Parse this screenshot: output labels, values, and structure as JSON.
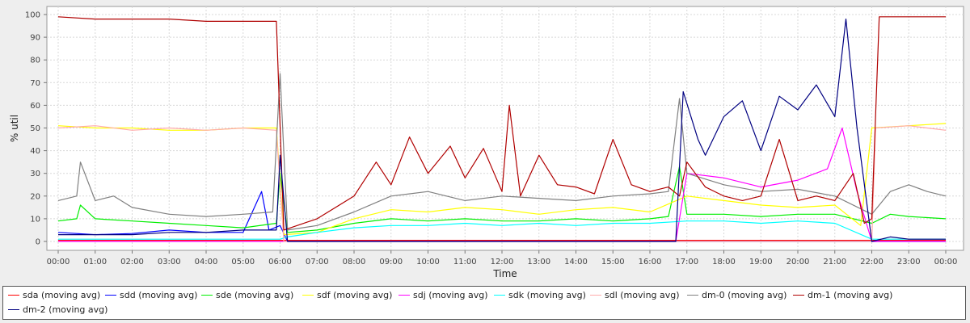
{
  "chart_data": {
    "type": "line",
    "xlabel": "Time",
    "ylabel": "% util",
    "x_ticks": [
      "00:00",
      "01:00",
      "02:00",
      "03:00",
      "04:00",
      "05:00",
      "06:00",
      "07:00",
      "08:00",
      "09:00",
      "10:00",
      "11:00",
      "12:00",
      "13:00",
      "14:00",
      "15:00",
      "16:00",
      "17:00",
      "18:00",
      "19:00",
      "20:00",
      "21:00",
      "22:00",
      "23:00",
      "00:00"
    ],
    "y_ticks": [
      "0",
      "10",
      "20",
      "30",
      "40",
      "50",
      "60",
      "70",
      "80",
      "90",
      "100"
    ],
    "xlim": [
      0,
      24
    ],
    "ylim": [
      0,
      100
    ],
    "grid": true,
    "legend_position": "bottom",
    "series": [
      {
        "name": "sda (moving avg)",
        "color": "#ff0000",
        "x": [
          0,
          6.1,
          24
        ],
        "y": [
          0.5,
          0.5,
          0.5
        ]
      },
      {
        "name": "sdd (moving avg)",
        "color": "#0000ff",
        "x": [
          0,
          1,
          2,
          3,
          4,
          5,
          5.5,
          5.7,
          6,
          6.2,
          6.5,
          16.7,
          17,
          24
        ],
        "y": [
          4,
          3,
          3.5,
          5,
          4,
          4,
          22,
          5,
          7,
          0,
          0,
          0,
          0,
          0
        ]
      },
      {
        "name": "sde (moving avg)",
        "color": "#00ee00",
        "x": [
          0,
          0.5,
          0.6,
          1,
          2,
          3,
          4,
          5,
          5.9,
          6,
          6.2,
          7,
          8,
          9,
          10,
          11,
          12,
          13,
          14,
          15,
          16,
          16.5,
          16.8,
          17,
          18,
          19,
          20,
          21,
          22,
          22.5,
          23,
          24
        ],
        "y": [
          9,
          10,
          16,
          10,
          9,
          8,
          7,
          6,
          8,
          30,
          4,
          5,
          8,
          10,
          9,
          10,
          9,
          9,
          10,
          9,
          10,
          11,
          33,
          12,
          12,
          11,
          12,
          12,
          8,
          12,
          11,
          10
        ]
      },
      {
        "name": "sdf (moving avg)",
        "color": "#ffff00",
        "x": [
          0,
          1,
          2,
          3,
          4,
          5,
          5.9,
          6.1,
          7,
          8,
          9,
          10,
          11,
          12,
          13,
          14,
          15,
          16,
          17,
          18,
          19,
          20,
          21,
          21.7,
          22,
          23,
          24
        ],
        "y": [
          51,
          50,
          50,
          49,
          49,
          50,
          50,
          3,
          4,
          10,
          14,
          13,
          15,
          14,
          12,
          14,
          15,
          13,
          20,
          18,
          16,
          15,
          16,
          7,
          50,
          51,
          52
        ]
      },
      {
        "name": "sdj (moving avg)",
        "color": "#ff00ff",
        "x": [
          0,
          6,
          6.2,
          16.7,
          17,
          18,
          19,
          20,
          20.8,
          21.2,
          21.6,
          22,
          24
        ],
        "y": [
          0,
          0,
          0,
          0,
          30,
          28,
          24,
          27,
          32,
          50,
          22,
          0,
          0
        ]
      },
      {
        "name": "sdk (moving avg)",
        "color": "#00ffff",
        "x": [
          0,
          6,
          6.2,
          7,
          8,
          9,
          10,
          11,
          12,
          13,
          14,
          15,
          16,
          17,
          18,
          19,
          20,
          21,
          22,
          24
        ],
        "y": [
          1,
          1,
          2,
          4,
          6,
          7,
          7,
          8,
          7,
          8,
          7,
          8,
          8,
          9,
          9,
          8,
          9,
          8,
          1,
          1
        ]
      },
      {
        "name": "sdl (moving avg)",
        "color": "#ffaaaa",
        "x": [
          0,
          1,
          2,
          3,
          4,
          5,
          5.9,
          6.1,
          22,
          22.1,
          23,
          24
        ],
        "y": [
          50,
          51,
          49,
          50,
          49,
          50,
          49,
          0,
          0,
          50,
          51,
          49
        ]
      },
      {
        "name": "dm-0 (moving avg)",
        "color": "#808080",
        "x": [
          0,
          0.5,
          0.6,
          1,
          1.5,
          2,
          3,
          4,
          5,
          5.8,
          6,
          6.2,
          7,
          8,
          9,
          10,
          11,
          12,
          13,
          14,
          15,
          16,
          16.5,
          16.8,
          17,
          18,
          19,
          20,
          21,
          22,
          22.5,
          23,
          23.5,
          24
        ],
        "y": [
          18,
          20,
          35,
          18,
          20,
          15,
          12,
          11,
          12,
          13,
          74,
          5,
          7,
          13,
          20,
          22,
          18,
          20,
          19,
          18,
          20,
          21,
          22,
          63,
          30,
          25,
          22,
          23,
          20,
          12,
          22,
          25,
          22,
          20
        ]
      },
      {
        "name": "dm-1 (moving avg)",
        "color": "#b00000",
        "x": [
          0,
          1,
          2,
          3,
          4,
          5,
          5.9,
          6.1,
          7,
          8,
          8.6,
          9,
          9.5,
          10,
          10.6,
          11,
          11.5,
          12,
          12.2,
          12.5,
          13,
          13.5,
          14,
          14.5,
          15,
          15.5,
          16,
          16.5,
          16.8,
          17,
          17.5,
          18,
          18.5,
          19,
          19.5,
          20,
          20.5,
          21,
          21.5,
          21.8,
          22,
          22.2,
          23,
          24
        ],
        "y": [
          99,
          98,
          98,
          98,
          97,
          97,
          97,
          5,
          10,
          20,
          35,
          25,
          46,
          30,
          42,
          28,
          41,
          22,
          60,
          20,
          38,
          25,
          24,
          21,
          45,
          25,
          22,
          24,
          20,
          35,
          24,
          20,
          18,
          20,
          45,
          18,
          20,
          18,
          30,
          8,
          10,
          99,
          99,
          99
        ]
      },
      {
        "name": "dm-2 (moving avg)",
        "color": "#000080",
        "x": [
          0,
          1,
          2,
          3,
          4,
          5,
          5.9,
          6,
          6.2,
          16.7,
          16.9,
          17.3,
          17.5,
          18,
          18.5,
          19,
          19.5,
          20,
          20.5,
          21,
          21.3,
          21.6,
          22,
          22.5,
          23,
          24
        ],
        "y": [
          3,
          3,
          3,
          4,
          4,
          5,
          5,
          38,
          0,
          0,
          66,
          45,
          38,
          55,
          62,
          40,
          64,
          58,
          69,
          55,
          98,
          50,
          0,
          2,
          1,
          1
        ]
      }
    ]
  }
}
